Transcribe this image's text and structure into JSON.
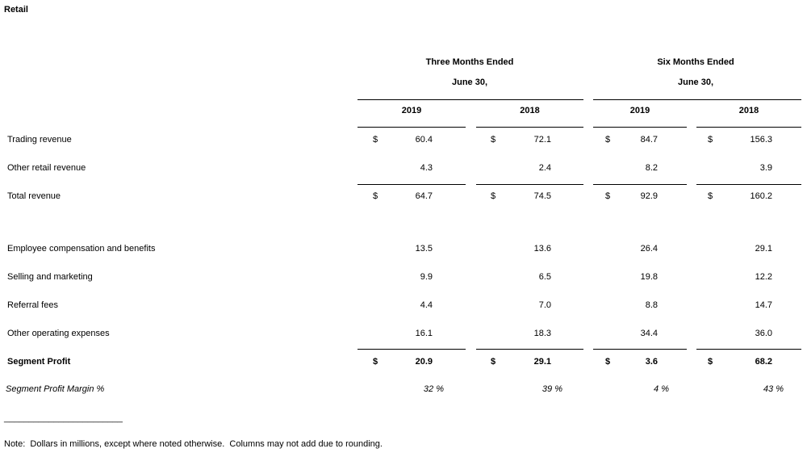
{
  "title": "Retail",
  "column_groups": [
    {
      "label": "Three Months Ended",
      "sublabel": "June 30,"
    },
    {
      "label": "Six Months Ended",
      "sublabel": "June 30,"
    }
  ],
  "years": [
    "2019",
    "2018",
    "2019",
    "2018"
  ],
  "rows": [
    {
      "label": "Trading revenue",
      "cells": [
        {
          "currency": "$",
          "value": "60.4"
        },
        {
          "currency": "$",
          "value": "72.1"
        },
        {
          "currency": "$",
          "value": "84.7"
        },
        {
          "currency": "$",
          "value": "156.3"
        }
      ]
    },
    {
      "label": "Other retail revenue",
      "cells": [
        {
          "value": "4.3"
        },
        {
          "value": "2.4"
        },
        {
          "value": "8.2"
        },
        {
          "value": "3.9"
        }
      ]
    },
    {
      "label": "Total revenue",
      "cells": [
        {
          "currency": "$",
          "value": "64.7"
        },
        {
          "currency": "$",
          "value": "74.5"
        },
        {
          "currency": "$",
          "value": "92.9"
        },
        {
          "currency": "$",
          "value": "160.2"
        }
      ]
    },
    {
      "label": "Employee compensation and benefits",
      "cells": [
        {
          "value": "13.5"
        },
        {
          "value": "13.6"
        },
        {
          "value": "26.4"
        },
        {
          "value": "29.1"
        }
      ]
    },
    {
      "label": "Selling and marketing",
      "cells": [
        {
          "value": "9.9"
        },
        {
          "value": "6.5"
        },
        {
          "value": "19.8"
        },
        {
          "value": "12.2"
        }
      ]
    },
    {
      "label": "Referral fees",
      "cells": [
        {
          "value": "4.4"
        },
        {
          "value": "7.0"
        },
        {
          "value": "8.8"
        },
        {
          "value": "14.7"
        }
      ]
    },
    {
      "label": "Other operating expenses",
      "cells": [
        {
          "value": "16.1"
        },
        {
          "value": "18.3"
        },
        {
          "value": "34.4"
        },
        {
          "value": "36.0"
        }
      ]
    },
    {
      "label": "Segment Profit",
      "cells": [
        {
          "currency": "$",
          "value": "20.9"
        },
        {
          "currency": "$",
          "value": "29.1"
        },
        {
          "currency": "$",
          "value": "3.6"
        },
        {
          "currency": "$",
          "value": "68.2"
        }
      ]
    },
    {
      "label": "Segment Profit Margin %",
      "cells": [
        {
          "value": "32 %"
        },
        {
          "value": "39 %"
        },
        {
          "value": "4 %"
        },
        {
          "value": "43 %"
        }
      ]
    }
  ],
  "footnote_rule": "________________________",
  "note": "Note:  Dollars in millions, except where noted otherwise.  Columns may not add due to rounding."
}
